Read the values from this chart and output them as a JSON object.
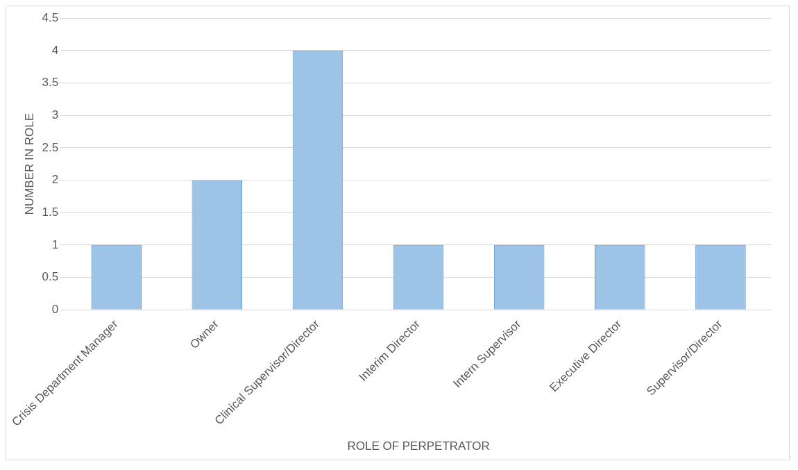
{
  "chart_data": {
    "type": "bar",
    "xlabel": "ROLE OF PERPETRATOR",
    "ylabel": "NUMBER IN ROLE",
    "categories": [
      "Crisis Department Manager",
      "Owner",
      "Clinical Supervisor/Director",
      "Interim Director",
      "Intern Supervisor",
      "Executive Director",
      "Supervisor/Director"
    ],
    "values": [
      1,
      2,
      4,
      1,
      1,
      1,
      1
    ],
    "color": "#9dc3e6",
    "ylim": [
      0,
      4.5
    ],
    "yticks": [
      0,
      0.5,
      1,
      1.5,
      2,
      2.5,
      3,
      3.5,
      4,
      4.5
    ],
    "grid": "y"
  }
}
